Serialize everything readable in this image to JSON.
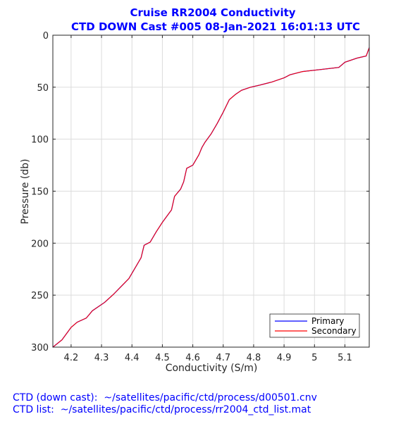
{
  "chart_data": {
    "type": "line",
    "title": "Cruise RR2004 Conductivity",
    "subtitle": "CTD DOWN Cast #005 08-Jan-2021 16:01:13 UTC",
    "xlabel": "Conductivity (S/m)",
    "ylabel": "Pressure (db)",
    "xlim": [
      4.14,
      5.18
    ],
    "ylim": [
      0,
      300
    ],
    "y_reversed": true,
    "grid": true,
    "legend_position": "bottom-right",
    "x_ticks": [
      4.2,
      4.3,
      4.4,
      4.5,
      4.6,
      4.7,
      4.8,
      4.9,
      5.0,
      5.1
    ],
    "x_tick_labels": [
      "4.2",
      "4.3",
      "4.4",
      "4.5",
      "4.6",
      "4.7",
      "4.8",
      "4.9",
      "5",
      "5.1"
    ],
    "y_ticks": [
      0,
      50,
      100,
      150,
      200,
      250,
      300
    ],
    "y_tick_labels": [
      "0",
      "50",
      "100",
      "150",
      "200",
      "250",
      "300"
    ],
    "series": [
      {
        "name": "Primary",
        "color": "#0000ff",
        "points": [
          [
            4.14,
            300
          ],
          [
            4.17,
            293
          ],
          [
            4.19,
            285
          ],
          [
            4.2,
            281
          ],
          [
            4.22,
            276
          ],
          [
            4.25,
            272
          ],
          [
            4.27,
            265
          ],
          [
            4.31,
            257
          ],
          [
            4.34,
            249
          ],
          [
            4.37,
            240
          ],
          [
            4.39,
            234
          ],
          [
            4.41,
            224
          ],
          [
            4.43,
            214
          ],
          [
            4.44,
            202
          ],
          [
            4.46,
            199
          ],
          [
            4.48,
            189
          ],
          [
            4.5,
            180
          ],
          [
            4.52,
            172
          ],
          [
            4.53,
            168
          ],
          [
            4.54,
            155
          ],
          [
            4.56,
            148
          ],
          [
            4.57,
            141
          ],
          [
            4.58,
            128
          ],
          [
            4.6,
            125
          ],
          [
            4.62,
            115
          ],
          [
            4.63,
            108
          ],
          [
            4.64,
            103
          ],
          [
            4.66,
            95
          ],
          [
            4.68,
            85
          ],
          [
            4.7,
            74
          ],
          [
            4.71,
            68
          ],
          [
            4.72,
            62
          ],
          [
            4.74,
            57
          ],
          [
            4.76,
            53
          ],
          [
            4.79,
            50
          ],
          [
            4.82,
            48
          ],
          [
            4.86,
            45
          ],
          [
            4.9,
            41
          ],
          [
            4.92,
            38
          ],
          [
            4.96,
            35
          ],
          [
            5.02,
            33
          ],
          [
            5.08,
            31
          ],
          [
            5.1,
            26
          ],
          [
            5.14,
            22
          ],
          [
            5.17,
            20
          ],
          [
            5.18,
            12
          ]
        ]
      },
      {
        "name": "Secondary",
        "color": "#ff0000",
        "points": [
          [
            4.14,
            300
          ],
          [
            4.17,
            293
          ],
          [
            4.19,
            285
          ],
          [
            4.2,
            281
          ],
          [
            4.22,
            276
          ],
          [
            4.25,
            272
          ],
          [
            4.27,
            265
          ],
          [
            4.31,
            257
          ],
          [
            4.34,
            249
          ],
          [
            4.37,
            240
          ],
          [
            4.39,
            234
          ],
          [
            4.41,
            224
          ],
          [
            4.43,
            214
          ],
          [
            4.44,
            202
          ],
          [
            4.46,
            199
          ],
          [
            4.48,
            189
          ],
          [
            4.5,
            180
          ],
          [
            4.52,
            172
          ],
          [
            4.53,
            168
          ],
          [
            4.54,
            155
          ],
          [
            4.56,
            148
          ],
          [
            4.57,
            141
          ],
          [
            4.58,
            128
          ],
          [
            4.6,
            125
          ],
          [
            4.62,
            115
          ],
          [
            4.63,
            108
          ],
          [
            4.64,
            103
          ],
          [
            4.66,
            95
          ],
          [
            4.68,
            85
          ],
          [
            4.7,
            74
          ],
          [
            4.71,
            68
          ],
          [
            4.72,
            62
          ],
          [
            4.74,
            57
          ],
          [
            4.76,
            53
          ],
          [
            4.79,
            50
          ],
          [
            4.82,
            48
          ],
          [
            4.86,
            45
          ],
          [
            4.9,
            41
          ],
          [
            4.92,
            38
          ],
          [
            4.96,
            35
          ],
          [
            5.02,
            33
          ],
          [
            5.08,
            31
          ],
          [
            5.1,
            26
          ],
          [
            5.14,
            22
          ],
          [
            5.17,
            20
          ],
          [
            5.18,
            12
          ]
        ]
      }
    ]
  },
  "footer": {
    "line1": "CTD (down cast):  ~/satellites/pacific/ctd/process/d00501.cnv",
    "line2": "CTD list:  ~/satellites/pacific/ctd/process/rr2004_ctd_list.mat"
  }
}
